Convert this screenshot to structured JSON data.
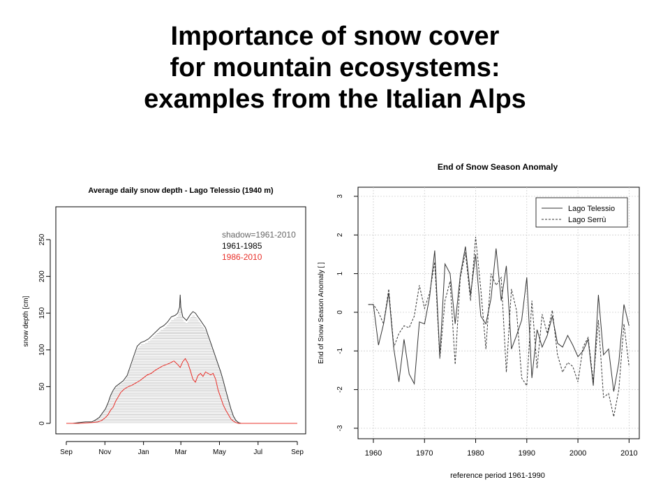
{
  "slide": {
    "title_lines": [
      "Importance of snow cover",
      "for mountain ecosystems:",
      "examples from the Italian Alps"
    ]
  },
  "colors": {
    "series_red": "#e8302a",
    "series_dark": "#333333",
    "shadow": "#b3b3b3",
    "grid": "#cfcfcf"
  },
  "chart_data": [
    {
      "type": "line",
      "title": "Average daily snow depth -  Lago Telessio (1940 m)",
      "xlabel": "",
      "ylabel": "snow depth [cm]",
      "x_tick_labels": [
        "Sep",
        "Nov",
        "Jan",
        "Mar",
        "May",
        "Jul",
        "Sep"
      ],
      "x_tick_positions_days": [
        0,
        61,
        122,
        181,
        242,
        303,
        365
      ],
      "xlim": [
        0,
        365
      ],
      "ylim": [
        0,
        250
      ],
      "y_ticks": [
        0,
        50,
        100,
        150,
        200,
        250
      ],
      "legend": [
        "shadow=1961-2010",
        "1961-1985",
        "1986-2010"
      ],
      "legend_position": "top-right",
      "series": [
        {
          "name": "1961-1985",
          "color": "#333333",
          "points": [
            [
              0,
              0
            ],
            [
              10,
              0
            ],
            [
              20,
              1
            ],
            [
              30,
              2
            ],
            [
              40,
              2
            ],
            [
              45,
              4
            ],
            [
              52,
              8
            ],
            [
              57,
              14
            ],
            [
              62,
              20
            ],
            [
              66,
              28
            ],
            [
              70,
              38
            ],
            [
              74,
              45
            ],
            [
              78,
              50
            ],
            [
              84,
              54
            ],
            [
              90,
              58
            ],
            [
              96,
              65
            ],
            [
              100,
              75
            ],
            [
              104,
              85
            ],
            [
              108,
              95
            ],
            [
              112,
              105
            ],
            [
              118,
              110
            ],
            [
              124,
              112
            ],
            [
              130,
              115
            ],
            [
              136,
              120
            ],
            [
              142,
              125
            ],
            [
              148,
              130
            ],
            [
              154,
              133
            ],
            [
              160,
              138
            ],
            [
              166,
              145
            ],
            [
              172,
              147
            ],
            [
              176,
              150
            ],
            [
              179,
              158
            ],
            [
              180,
              175
            ],
            [
              181,
              158
            ],
            [
              184,
              145
            ],
            [
              190,
              140
            ],
            [
              196,
              148
            ],
            [
              200,
              152
            ],
            [
              204,
              150
            ],
            [
              208,
              145
            ],
            [
              212,
              140
            ],
            [
              216,
              135
            ],
            [
              220,
              130
            ],
            [
              224,
              120
            ],
            [
              228,
              110
            ],
            [
              232,
              100
            ],
            [
              236,
              90
            ],
            [
              240,
              80
            ],
            [
              244,
              70
            ],
            [
              248,
              58
            ],
            [
              252,
              45
            ],
            [
              256,
              32
            ],
            [
              260,
              20
            ],
            [
              264,
              10
            ],
            [
              268,
              4
            ],
            [
              272,
              1
            ],
            [
              276,
              0
            ],
            [
              365,
              0
            ]
          ]
        },
        {
          "name": "1986-2010",
          "color": "#e8302a",
          "points": [
            [
              0,
              0
            ],
            [
              20,
              0
            ],
            [
              40,
              1
            ],
            [
              50,
              2
            ],
            [
              56,
              4
            ],
            [
              62,
              8
            ],
            [
              66,
              12
            ],
            [
              70,
              18
            ],
            [
              74,
              22
            ],
            [
              78,
              30
            ],
            [
              82,
              36
            ],
            [
              86,
              42
            ],
            [
              92,
              47
            ],
            [
              98,
              50
            ],
            [
              104,
              52
            ],
            [
              110,
              55
            ],
            [
              116,
              58
            ],
            [
              122,
              62
            ],
            [
              128,
              66
            ],
            [
              134,
              68
            ],
            [
              140,
              72
            ],
            [
              146,
              75
            ],
            [
              152,
              78
            ],
            [
              158,
              80
            ],
            [
              164,
              82
            ],
            [
              170,
              85
            ],
            [
              176,
              80
            ],
            [
              180,
              76
            ],
            [
              184,
              84
            ],
            [
              188,
              88
            ],
            [
              192,
              82
            ],
            [
              196,
              72
            ],
            [
              200,
              60
            ],
            [
              204,
              56
            ],
            [
              208,
              65
            ],
            [
              212,
              68
            ],
            [
              216,
              64
            ],
            [
              220,
              70
            ],
            [
              224,
              68
            ],
            [
              228,
              66
            ],
            [
              232,
              68
            ],
            [
              236,
              60
            ],
            [
              240,
              45
            ],
            [
              244,
              35
            ],
            [
              248,
              25
            ],
            [
              252,
              18
            ],
            [
              256,
              12
            ],
            [
              260,
              6
            ],
            [
              264,
              3
            ],
            [
              268,
              1
            ],
            [
              272,
              0
            ],
            [
              365,
              0
            ]
          ]
        }
      ]
    },
    {
      "type": "line",
      "title": "End of Snow Season Anomaly",
      "xlabel": "reference period 1961-1990",
      "ylabel": "End of Snow Season Anomaly [ ]",
      "xlim": [
        1957,
        2012
      ],
      "ylim": [
        -3,
        3
      ],
      "x_ticks": [
        1960,
        1970,
        1980,
        1990,
        2000,
        2010
      ],
      "y_ticks": [
        -3,
        -2,
        -1,
        0,
        1,
        2,
        3
      ],
      "grid": true,
      "legend_position": "top-right",
      "x": [
        1959,
        1960,
        1961,
        1962,
        1963,
        1964,
        1965,
        1966,
        1967,
        1968,
        1969,
        1970,
        1971,
        1972,
        1973,
        1974,
        1975,
        1976,
        1977,
        1978,
        1979,
        1980,
        1981,
        1982,
        1983,
        1984,
        1985,
        1986,
        1987,
        1988,
        1989,
        1990,
        1991,
        1992,
        1993,
        1994,
        1995,
        1996,
        1997,
        1998,
        1999,
        2000,
        2001,
        2002,
        2003,
        2004,
        2005,
        2006,
        2007,
        2008,
        2009,
        2010
      ],
      "series": [
        {
          "name": "Lago Telessio",
          "style": "solid",
          "values": [
            0.2,
            0.2,
            -0.85,
            -0.3,
            0.5,
            -0.95,
            -1.8,
            -0.7,
            -1.6,
            -1.85,
            -0.25,
            -0.3,
            0.4,
            1.6,
            -1.15,
            1.25,
            1.0,
            -0.3,
            0.95,
            1.7,
            0.45,
            1.5,
            -0.1,
            -0.3,
            0.35,
            1.65,
            0.3,
            1.2,
            -0.95,
            -0.6,
            -0.2,
            0.9,
            -1.7,
            -0.45,
            -0.9,
            -0.6,
            -0.1,
            -0.8,
            -0.9,
            -0.6,
            -0.85,
            -1.15,
            -1.0,
            -0.7,
            -1.9,
            0.45,
            -1.1,
            -0.95,
            -2.05,
            -1.3,
            0.2,
            -0.35
          ]
        },
        {
          "name": "Lago Serrù",
          "style": "dashed",
          "values": [
            0.2,
            0.2,
            0.0,
            -0.3,
            0.6,
            -0.9,
            -0.55,
            -0.35,
            -0.4,
            -0.1,
            0.7,
            0.1,
            0.5,
            1.3,
            -1.2,
            0.3,
            0.8,
            -1.35,
            0.9,
            1.55,
            0.3,
            1.95,
            0.6,
            -0.95,
            1.0,
            0.7,
            0.9,
            -1.55,
            0.6,
            0.05,
            -1.7,
            -1.9,
            0.3,
            -1.45,
            -0.05,
            -0.55,
            0.05,
            -1.1,
            -1.55,
            -1.3,
            -1.4,
            -1.8,
            -0.9,
            -0.65,
            -1.8,
            -0.2,
            -2.2,
            -2.1,
            -2.7,
            -2.0,
            -0.3,
            -1.4
          ]
        }
      ]
    }
  ]
}
